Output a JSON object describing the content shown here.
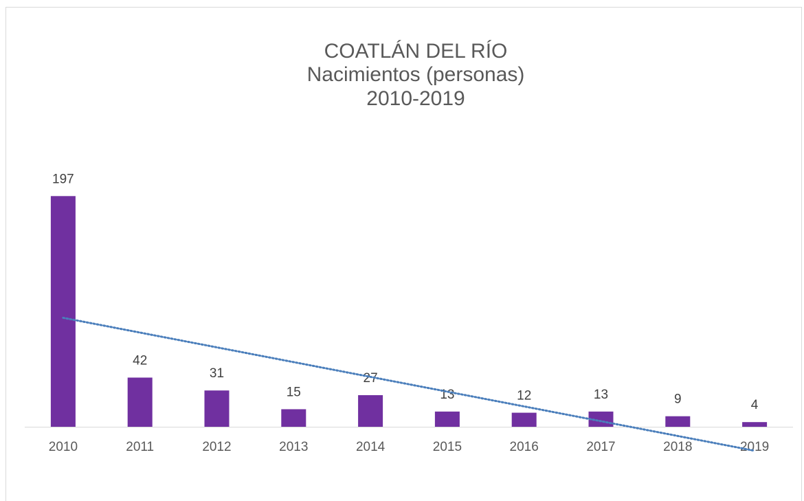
{
  "chart_data": {
    "type": "bar",
    "title": [
      "COATLÁN DEL RÍO",
      "Nacimientos (personas)",
      "2010-2019"
    ],
    "categories": [
      "2010",
      "2011",
      "2012",
      "2013",
      "2014",
      "2015",
      "2016",
      "2017",
      "2018",
      "2019"
    ],
    "values": [
      197,
      42,
      31,
      15,
      27,
      13,
      12,
      13,
      9,
      4
    ],
    "color": "#7030a0",
    "ylim": [
      0,
      250
    ],
    "data_labels": true,
    "trendline": "linear",
    "trendline_color": "#4a7ebb"
  }
}
